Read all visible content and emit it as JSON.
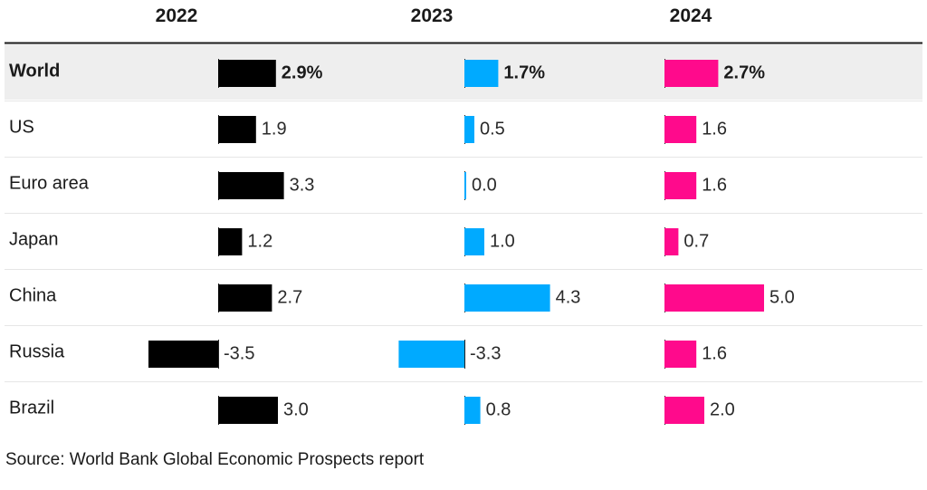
{
  "chart_data": {
    "type": "bar",
    "orientation": "horizontal",
    "columns": [
      "2022",
      "2023",
      "2024"
    ],
    "categories": [
      "World",
      "US",
      "Euro area",
      "Japan",
      "China",
      "Russia",
      "Brazil"
    ],
    "highlighted_category": "World",
    "series": [
      {
        "name": "2022",
        "color": "#000000",
        "values": [
          2.9,
          1.9,
          3.3,
          1.2,
          2.7,
          -3.5,
          3.0
        ],
        "labels": [
          "2.9%",
          "1.9",
          "3.3",
          "1.2",
          "2.7",
          "-3.5",
          "3.0"
        ]
      },
      {
        "name": "2023",
        "color": "#00aaff",
        "values": [
          1.7,
          0.5,
          0.0,
          1.0,
          4.3,
          -3.3,
          0.8
        ],
        "labels": [
          "1.7%",
          "0.5",
          "0.0",
          "1.0",
          "4.3",
          "-3.3",
          "0.8"
        ]
      },
      {
        "name": "2024",
        "color": "#ff0a8c",
        "values": [
          2.7,
          1.6,
          1.6,
          0.7,
          5.0,
          1.6,
          2.0
        ],
        "labels": [
          "2.7%",
          "1.6",
          "1.6",
          "0.7",
          "5.0",
          "1.6",
          "2.0"
        ]
      }
    ],
    "source": "Source: World Bank Global Economic Prospects report"
  }
}
